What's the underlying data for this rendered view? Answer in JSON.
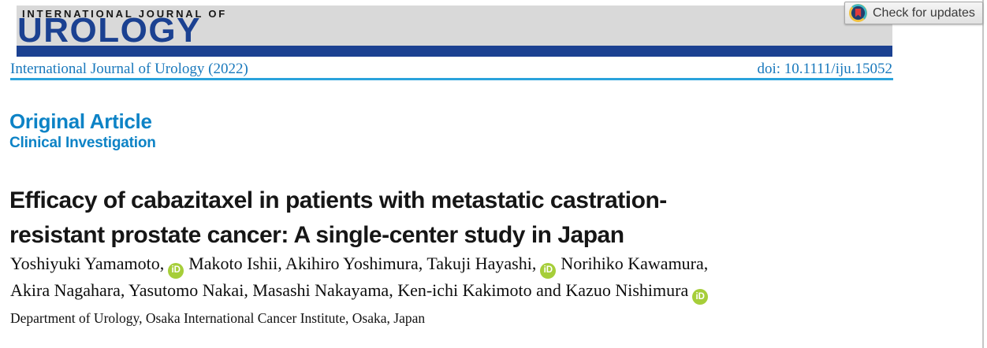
{
  "masthead": {
    "kicker": "INTERNATIONAL JOURNAL OF",
    "wordmark": "UROLOGY"
  },
  "meta": {
    "citation": "International Journal of Urology (2022)",
    "doi": "doi: 10.1111/iju.15052"
  },
  "crossmark_badge": {
    "label": "Check for updates"
  },
  "article": {
    "section_label": "Original Article",
    "subsection_label": "Clinical Investigation",
    "title_lines": [
      "Efficacy of cabazitaxel in patients with metastatic castration-",
      "resistant prostate cancer: A single-center study in Japan"
    ],
    "author_lines": [
      [
        {
          "text": "Yoshiyuki Yamamoto,",
          "orcid_after": true
        },
        {
          "text": "Makoto Ishii, Akihiro Yoshimura, Takuji Hayashi,",
          "orcid_after": true
        },
        {
          "text": "Norihiko Kawamura,",
          "orcid_after": false
        }
      ],
      [
        {
          "text": "Akira Nagahara, Yasutomo Nakai, Masashi Nakayama, Ken-ichi Kakimoto and Kazuo Nishimura",
          "orcid_after": true
        }
      ]
    ],
    "orcid_icon_label": "iD",
    "affiliation": "Department of Urology, Osaka International Cancer Institute, Osaka, Japan"
  },
  "colors": {
    "masthead_band_gray": "#D9D9D9",
    "masthead_navy": "#1B4191",
    "link_blue": "#1878BC",
    "rule_light_blue": "#2AA3DC",
    "section_blue": "#0D83C6",
    "title_black": "#161616",
    "orcid_green": "#A6CE39",
    "crossmark_red": "#E03A3C",
    "crossmark_yellow": "#F2C23E",
    "crossmark_teal": "#3DB8C5",
    "crossmark_navy": "#20406E"
  }
}
